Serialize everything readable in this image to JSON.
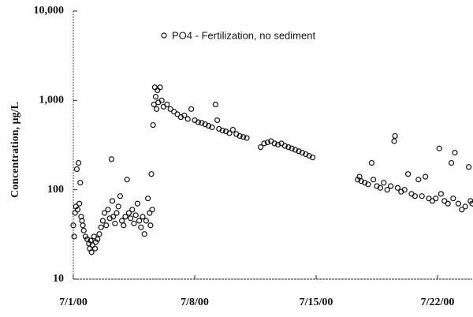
{
  "chart_data": {
    "type": "scatter",
    "y_label": "Concentration, µg/L",
    "log_y": true,
    "grid": false,
    "legend_position": "top",
    "xlim": [
      0,
      23
    ],
    "ylim": [
      10,
      10000
    ],
    "xticks": [
      {
        "value": 0,
        "label": "7/1/00"
      },
      {
        "value": 7,
        "label": "7/8/00"
      },
      {
        "value": 14,
        "label": "7/15/00"
      },
      {
        "value": 21,
        "label": "7/22/00"
      }
    ],
    "yticks": [
      10,
      100,
      {
        "value": 1000,
        "label": "1,000"
      },
      {
        "value": 10000,
        "label": "10,000"
      }
    ],
    "series": [
      {
        "name": "PO4 - Fertilization, no sediment",
        "color": "#111111",
        "x": [
          0.0,
          0.05,
          0.1,
          0.15,
          0.2,
          0.25,
          0.3,
          0.35,
          0.4,
          0.45,
          0.5,
          0.55,
          0.6,
          0.7,
          0.8,
          0.9,
          0.95,
          1.0,
          1.05,
          1.1,
          1.2,
          1.25,
          1.3,
          1.4,
          1.5,
          1.6,
          1.7,
          1.8,
          1.9,
          2.0,
          2.1,
          2.2,
          2.25,
          2.3,
          2.4,
          2.5,
          2.6,
          2.7,
          2.8,
          2.9,
          3.0,
          3.1,
          3.2,
          3.3,
          3.4,
          3.5,
          3.6,
          3.7,
          3.8,
          3.9,
          4.0,
          4.1,
          4.2,
          4.3,
          4.4,
          4.45,
          4.5,
          4.55,
          4.6,
          4.65,
          4.7,
          4.75,
          4.8,
          4.85,
          4.9,
          5.0,
          5.1,
          5.2,
          5.4,
          5.6,
          5.8,
          6.0,
          6.2,
          6.4,
          6.6,
          6.8,
          7.0,
          7.2,
          7.4,
          7.6,
          7.8,
          8.0,
          8.2,
          8.3,
          8.4,
          8.6,
          8.8,
          9.0,
          9.2,
          9.4,
          9.6,
          9.8,
          10.0,
          10.8,
          11.0,
          11.2,
          11.4,
          11.6,
          11.8,
          12.0,
          12.2,
          12.4,
          12.6,
          12.8,
          13.0,
          13.2,
          13.4,
          13.6,
          13.8,
          16.4,
          16.5,
          16.6,
          16.8,
          17.0,
          17.2,
          17.3,
          17.5,
          17.7,
          17.9,
          18.1,
          18.3,
          18.5,
          18.55,
          18.7,
          18.9,
          19.1,
          19.3,
          19.5,
          19.7,
          19.9,
          20.1,
          20.3,
          20.5,
          20.7,
          20.9,
          21.1,
          21.2,
          21.4,
          21.6,
          21.8,
          21.9,
          22.0,
          22.2,
          22.4,
          22.6,
          22.8,
          22.9,
          23.0
        ],
        "values": [
          40,
          30,
          55,
          65,
          170,
          60,
          200,
          70,
          120,
          50,
          45,
          40,
          35,
          30,
          28,
          25,
          22,
          27,
          20,
          24,
          30,
          22,
          26,
          28,
          32,
          38,
          45,
          55,
          40,
          60,
          48,
          220,
          75,
          50,
          42,
          55,
          65,
          85,
          45,
          40,
          50,
          130,
          55,
          48,
          60,
          42,
          52,
          70,
          45,
          38,
          50,
          32,
          45,
          80,
          55,
          40,
          150,
          60,
          530,
          900,
          1400,
          1100,
          800,
          1300,
          950,
          1400,
          1000,
          850,
          900,
          800,
          750,
          700,
          650,
          680,
          620,
          800,
          600,
          570,
          560,
          540,
          520,
          500,
          900,
          600,
          480,
          460,
          450,
          430,
          470,
          420,
          400,
          390,
          380,
          300,
          330,
          340,
          350,
          330,
          320,
          330,
          310,
          300,
          290,
          280,
          270,
          260,
          250,
          240,
          230,
          130,
          140,
          125,
          120,
          115,
          200,
          130,
          110,
          105,
          120,
          100,
          110,
          350,
          400,
          105,
          95,
          100,
          150,
          90,
          85,
          130,
          85,
          140,
          80,
          75,
          80,
          290,
          90,
          75,
          70,
          200,
          80,
          260,
          70,
          60,
          65,
          180,
          75,
          70
        ]
      }
    ]
  }
}
